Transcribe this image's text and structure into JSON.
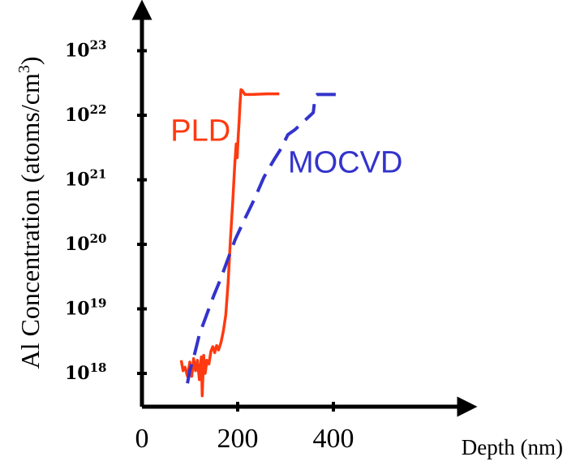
{
  "chart_data": {
    "type": "line",
    "title": "",
    "xlabel": "Depth (nm)",
    "ylabel": "Al Concentration (atoms/cm",
    "ylabel_superscript": "3",
    "ylabel_close": ")",
    "xlim": [
      0,
      500
    ],
    "ylim": [
      1e+17,
      1e+24
    ],
    "yscale": "log",
    "grid": false,
    "legend": "none",
    "x_ticks": [
      {
        "value": 0,
        "label": "0"
      },
      {
        "value": 200,
        "label": "200"
      },
      {
        "value": 400,
        "label": "400"
      }
    ],
    "y_ticks": [
      {
        "value": 1e+18,
        "base": "10",
        "exp": "18"
      },
      {
        "value": 1e+19,
        "base": "10",
        "exp": "19"
      },
      {
        "value": 1e+20,
        "base": "10",
        "exp": "20"
      },
      {
        "value": 1e+21,
        "base": "10",
        "exp": "21"
      },
      {
        "value": 1e+22,
        "base": "10",
        "exp": "22"
      },
      {
        "value": 1e+23,
        "base": "10",
        "exp": "23"
      }
    ],
    "series": [
      {
        "name": "PLD",
        "color": "#ff3a10",
        "dash": "solid",
        "label_anchor": {
          "x": 185,
          "y": 4e+21
        },
        "points": [
          [
            82,
            1.6e+18
          ],
          [
            86,
            1.1e+18
          ],
          [
            90,
            1.25e+18
          ],
          [
            95,
            9e+17
          ],
          [
            100,
            1.5e+18
          ],
          [
            104,
            9e+17
          ],
          [
            108,
            1.7e+18
          ],
          [
            112,
            1.1e+18
          ],
          [
            116,
            1.6e+18
          ],
          [
            120,
            8e+17
          ],
          [
            124,
            1.8e+18
          ],
          [
            126,
            4.5e+17
          ],
          [
            129,
            1.9e+18
          ],
          [
            132,
            1e+18
          ],
          [
            136,
            1.6e+18
          ],
          [
            140,
            1.4e+18
          ],
          [
            144,
            2.2e+18
          ],
          [
            148,
            2.6e+18
          ],
          [
            152,
            2.1e+18
          ],
          [
            156,
            2.7e+18
          ],
          [
            160,
            2.3e+18
          ],
          [
            165,
            3e+18
          ],
          [
            170,
            4.5e+18
          ],
          [
            175,
            8e+18
          ],
          [
            180,
            2.5e+19
          ],
          [
            185,
            1.2e+20
          ],
          [
            190,
            5e+20
          ],
          [
            194,
            1.8e+21
          ],
          [
            197,
            3.6e+21
          ],
          [
            199,
            2.2e+21
          ],
          [
            201,
            4.5e+21
          ],
          [
            203,
            8e+21
          ],
          [
            205,
            1.5e+22
          ],
          [
            207,
            2.5e+22
          ],
          [
            210,
            2.4e+22
          ],
          [
            215,
            2.1e+22
          ],
          [
            230,
            2.1e+22
          ],
          [
            260,
            2.15e+22
          ],
          [
            287,
            2.15e+22
          ]
        ]
      },
      {
        "name": "MOCVD",
        "color": "#3333cc",
        "dash": "dashed",
        "label_anchor": {
          "x": 305,
          "y": 1.3e+21
        },
        "points": [
          [
            95,
            7e+17
          ],
          [
            100,
            1.1e+18
          ],
          [
            110,
            2e+18
          ],
          [
            120,
            4e+18
          ],
          [
            135,
            8e+18
          ],
          [
            150,
            1.6e+19
          ],
          [
            165,
            3e+19
          ],
          [
            180,
            6e+19
          ],
          [
            195,
            1.2e+20
          ],
          [
            215,
            2.5e+20
          ],
          [
            235,
            5e+20
          ],
          [
            255,
            1.1e+21
          ],
          [
            275,
            2e+21
          ],
          [
            290,
            3e+21
          ],
          [
            305,
            5e+21
          ],
          [
            320,
            6e+21
          ],
          [
            338,
            8e+21
          ],
          [
            352,
            1e+22
          ],
          [
            358,
            1.1e+22
          ],
          [
            362,
            2e+22
          ],
          [
            366,
            2.1e+22
          ],
          [
            390,
            2.1e+22
          ],
          [
            413,
            2.1e+22
          ]
        ]
      }
    ]
  }
}
